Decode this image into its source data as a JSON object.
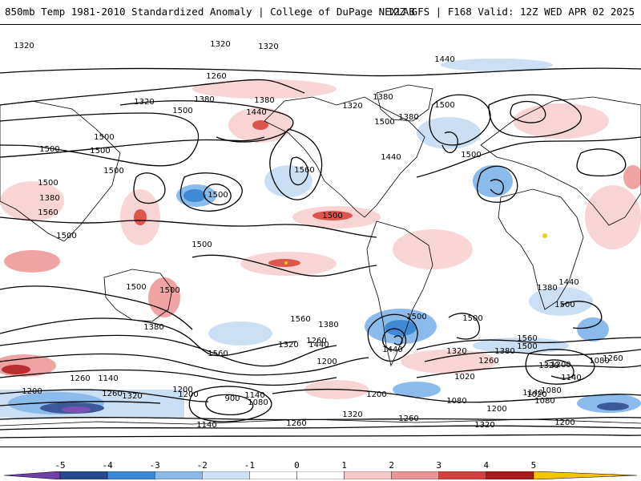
{
  "header": {
    "title_left": "850mb Temp 1981-2010 Standardized Anomaly | College of DuPage NEXLAB",
    "title_right": "12Z GFS | F168 Valid: 12Z WED APR 02 2025"
  },
  "map": {
    "contour_labels": [
      "1320",
      "1320",
      "1260",
      "1320",
      "1380",
      "1440",
      "1320",
      "1380",
      "1320",
      "1380",
      "1440",
      "1500",
      "1380",
      "1500",
      "1560",
      "1440",
      "1500",
      "1500",
      "1380",
      "1500",
      "1500",
      "1560",
      "1500",
      "1500",
      "1500",
      "1500",
      "1500",
      "1500",
      "1500",
      "1500",
      "1500",
      "1500",
      "1560",
      "1380",
      "1560",
      "1440",
      "1320",
      "1260",
      "1380",
      "1500",
      "1440",
      "1320",
      "1380",
      "1260",
      "1200",
      "1500",
      "1440",
      "1380",
      "1560",
      "1500",
      "1320",
      "1140",
      "1080",
      "1020",
      "1200",
      "1140",
      "900",
      "1080",
      "1020",
      "1080",
      "1200",
      "1140",
      "1260",
      "1200",
      "1320",
      "1260",
      "1140",
      "1200",
      "1200",
      "1320",
      "1260",
      "1320",
      "1200",
      "1260",
      "1140",
      "1080",
      "1080",
      "1200",
      "1260"
    ],
    "colors": {
      "neg5": "#7b3fb0",
      "neg4": "#1f3f8c",
      "neg3": "#2a7fd0",
      "neg2": "#7fb4e8",
      "neg1": "#c6dcf3",
      "pos1": "#f8d0d0",
      "pos2": "#ef9a9a",
      "pos3": "#d9443a",
      "pos4": "#b01818",
      "pos5": "#6b0000",
      "extreme": "#f5c300"
    }
  },
  "colorbar": {
    "ticks": [
      "-5",
      "-4",
      "-3",
      "-2",
      "-1",
      "0",
      "1",
      "2",
      "3",
      "4",
      "5"
    ],
    "colors": [
      "#6e40a8",
      "#27488f",
      "#3a88d4",
      "#8db9e6",
      "#cfe2f4",
      "#ffffff",
      "#ffffff",
      "#f6c9c9",
      "#ea9595",
      "#d34141",
      "#a81b1b",
      "#690606"
    ]
  }
}
